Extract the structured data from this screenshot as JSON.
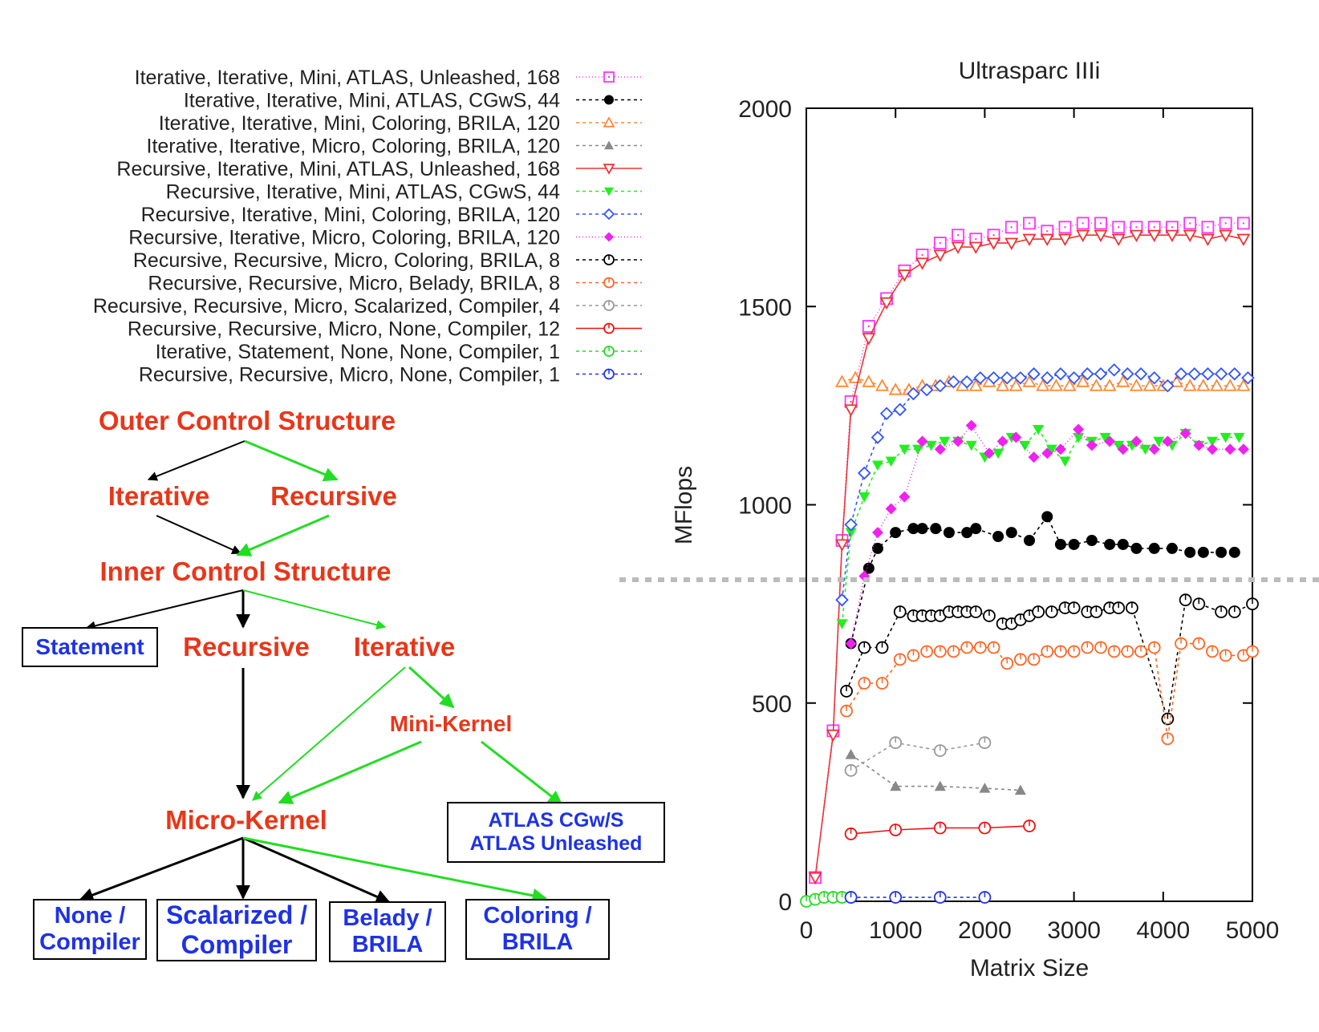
{
  "chart_data": {
    "type": "line",
    "title": "Ultrasparc IIIi",
    "xlabel": "Matrix Size",
    "ylabel": "MFlops",
    "xlim": [
      0,
      5000
    ],
    "ylim": [
      0,
      2000
    ],
    "xticks": [
      0,
      1000,
      2000,
      3000,
      4000,
      5000
    ],
    "yticks": [
      0,
      500,
      1000,
      1500,
      2000
    ],
    "grid": false,
    "legend_position": "top-left-outside",
    "series": [
      {
        "name": "Iterative, Iterative, Mini, ATLAS, Unleashed, 168",
        "color": "#ff33ff",
        "marker": "square-open",
        "dash": "1,3",
        "x": [
          100,
          300,
          400,
          500,
          700,
          900,
          1100,
          1300,
          1500,
          1700,
          1900,
          2100,
          2300,
          2500,
          2700,
          2900,
          3100,
          3300,
          3500,
          3700,
          3900,
          4100,
          4300,
          4500,
          4700,
          4900
        ],
        "y": [
          60,
          430,
          910,
          1260,
          1450,
          1520,
          1590,
          1630,
          1660,
          1680,
          1670,
          1680,
          1700,
          1710,
          1690,
          1700,
          1710,
          1710,
          1700,
          1700,
          1700,
          1700,
          1710,
          1700,
          1710,
          1710
        ]
      },
      {
        "name": "Iterative, Iterative, Mini, ATLAS, CGwS, 44",
        "color": "#000000",
        "marker": "circle-filled",
        "dash": "4,4",
        "x": [
          500,
          700,
          800,
          1000,
          1200,
          1300,
          1450,
          1600,
          1800,
          1900,
          2150,
          2300,
          2500,
          2700,
          2850,
          3000,
          3200,
          3400,
          3550,
          3700,
          3900,
          4100,
          4300,
          4450,
          4650,
          4800
        ],
        "y": [
          650,
          840,
          890,
          930,
          940,
          940,
          940,
          930,
          930,
          940,
          920,
          930,
          910,
          970,
          900,
          900,
          910,
          900,
          900,
          890,
          890,
          890,
          880,
          880,
          880,
          880
        ]
      },
      {
        "name": "Iterative, Iterative, Mini, Coloring, BRILA, 120",
        "color": "#ff8833",
        "marker": "triangle-open",
        "dash": "4,4",
        "x": [
          400,
          550,
          700,
          850,
          1000,
          1150,
          1300,
          1450,
          1600,
          1750,
          1900,
          2050,
          2200,
          2350,
          2500,
          2650,
          2800,
          2950,
          3100,
          3250,
          3400,
          3550,
          3700,
          3850,
          4000,
          4150,
          4300,
          4450,
          4600,
          4750,
          4900
        ],
        "y": [
          1310,
          1320,
          1310,
          1300,
          1290,
          1290,
          1300,
          1300,
          1310,
          1300,
          1300,
          1310,
          1300,
          1300,
          1310,
          1300,
          1300,
          1300,
          1310,
          1300,
          1300,
          1310,
          1300,
          1300,
          1300,
          1310,
          1300,
          1300,
          1300,
          1300,
          1300
        ]
      },
      {
        "name": "Iterative, Iterative, Micro, Coloring, BRILA, 120",
        "color": "#888888",
        "marker": "triangle-filled",
        "dash": "4,4",
        "x": [
          500,
          1000,
          1500,
          2000,
          2400
        ],
        "y": [
          370,
          290,
          290,
          285,
          280
        ]
      },
      {
        "name": "Recursive, Iterative, Mini, ATLAS, Unleashed, 168",
        "color": "#ee3333",
        "marker": "triangle-down-open",
        "dash": "",
        "x": [
          100,
          300,
          400,
          500,
          700,
          900,
          1100,
          1300,
          1500,
          1700,
          1900,
          2100,
          2300,
          2500,
          2700,
          2900,
          3100,
          3300,
          3500,
          3700,
          3900,
          4100,
          4300,
          4500,
          4700,
          4900
        ],
        "y": [
          60,
          420,
          900,
          1240,
          1420,
          1510,
          1580,
          1610,
          1630,
          1650,
          1650,
          1660,
          1660,
          1670,
          1670,
          1670,
          1680,
          1680,
          1670,
          1680,
          1680,
          1680,
          1680,
          1670,
          1680,
          1670
        ]
      },
      {
        "name": "Recursive, Iterative, Mini, ATLAS, CGwS, 44",
        "color": "#22ee22",
        "marker": "triangle-down-filled",
        "dash": "4,4",
        "x": [
          400,
          500,
          650,
          800,
          950,
          1100,
          1250,
          1400,
          1550,
          1700,
          1850,
          2000,
          2150,
          2300,
          2450,
          2600,
          2750,
          2900,
          3050,
          3200,
          3350,
          3500,
          3650,
          3800,
          3950,
          4100,
          4250,
          4400,
          4550,
          4700,
          4850
        ],
        "y": [
          700,
          930,
          1020,
          1100,
          1110,
          1140,
          1140,
          1150,
          1160,
          1160,
          1150,
          1120,
          1130,
          1170,
          1150,
          1190,
          1140,
          1110,
          1170,
          1160,
          1170,
          1150,
          1150,
          1140,
          1160,
          1150,
          1180,
          1150,
          1160,
          1170,
          1170
        ]
      },
      {
        "name": "Recursive, Iterative, Mini, Coloring, BRILA, 120",
        "color": "#3355ff",
        "marker": "diamond-open",
        "dash": "4,4",
        "x": [
          400,
          500,
          650,
          800,
          900,
          1050,
          1200,
          1350,
          1500,
          1650,
          1800,
          1950,
          2100,
          2250,
          2400,
          2550,
          2700,
          2850,
          3000,
          3150,
          3300,
          3450,
          3600,
          3750,
          3900,
          4050,
          4200,
          4350,
          4500,
          4650,
          4800,
          4950
        ],
        "y": [
          760,
          950,
          1080,
          1170,
          1230,
          1240,
          1280,
          1290,
          1300,
          1310,
          1310,
          1320,
          1320,
          1320,
          1320,
          1330,
          1320,
          1330,
          1320,
          1330,
          1330,
          1340,
          1330,
          1330,
          1320,
          1300,
          1330,
          1330,
          1330,
          1330,
          1330,
          1320
        ]
      },
      {
        "name": "Recursive, Iterative, Micro, Coloring, BRILA, 120",
        "color": "#ee22ee",
        "marker": "diamond-filled",
        "dash": "1,3",
        "x": [
          500,
          650,
          800,
          950,
          1100,
          1300,
          1500,
          1700,
          1850,
          2050,
          2200,
          2350,
          2550,
          2700,
          2850,
          3050,
          3200,
          3400,
          3550,
          3700,
          3900,
          4050,
          4250,
          4400,
          4550,
          4750,
          4900
        ],
        "y": [
          650,
          820,
          930,
          990,
          1020,
          1160,
          1140,
          1160,
          1200,
          1130,
          1160,
          1170,
          1120,
          1130,
          1140,
          1190,
          1150,
          1160,
          1140,
          1160,
          1140,
          1160,
          1180,
          1150,
          1140,
          1140,
          1140
        ]
      },
      {
        "name": "Recursive, Recursive, Micro, Coloring, BRILA, 8",
        "color": "#000000",
        "marker": "circle-open",
        "dash": "4,4",
        "x": [
          450,
          650,
          850,
          1050,
          1200,
          1300,
          1400,
          1500,
          1600,
          1700,
          1800,
          1900,
          2050,
          2200,
          2300,
          2400,
          2500,
          2600,
          2750,
          2900,
          3000,
          3150,
          3250,
          3400,
          3500,
          3650,
          4050,
          4250,
          4400,
          4650,
          4800,
          5000
        ],
        "y": [
          530,
          640,
          640,
          730,
          720,
          720,
          720,
          720,
          730,
          730,
          730,
          730,
          720,
          700,
          700,
          710,
          720,
          730,
          730,
          740,
          740,
          730,
          730,
          740,
          740,
          740,
          460,
          760,
          750,
          730,
          730,
          750
        ]
      },
      {
        "name": "Recursive, Recursive, Micro, Belady, BRILA, 8",
        "color": "#ff6622",
        "marker": "circle-open",
        "dash": "4,4",
        "x": [
          450,
          650,
          850,
          1050,
          1200,
          1350,
          1500,
          1650,
          1800,
          1950,
          2100,
          2250,
          2400,
          2550,
          2700,
          2850,
          3000,
          3150,
          3300,
          3450,
          3600,
          3750,
          3900,
          4050,
          4200,
          4400,
          4550,
          4700,
          4900,
          5000
        ],
        "y": [
          480,
          550,
          550,
          610,
          620,
          630,
          630,
          630,
          640,
          640,
          640,
          600,
          610,
          610,
          630,
          630,
          630,
          640,
          640,
          630,
          630,
          630,
          640,
          410,
          650,
          650,
          630,
          620,
          620,
          630
        ]
      },
      {
        "name": "Recursive, Recursive, Micro, Scalarized, Compiler, 4",
        "color": "#999999",
        "marker": "circle-open",
        "dash": "4,4",
        "x": [
          500,
          1000,
          1500,
          2000
        ],
        "y": [
          330,
          400,
          380,
          400
        ]
      },
      {
        "name": "Recursive, Recursive, Micro, None, Compiler, 12",
        "color": "#ee1111",
        "marker": "circle-open",
        "dash": "",
        "x": [
          500,
          1000,
          1500,
          2000,
          2500
        ],
        "y": [
          170,
          180,
          185,
          185,
          190
        ]
      },
      {
        "name": "Iterative, Statement, None, None, Compiler, 1",
        "color": "#22dd22",
        "marker": "circle-open",
        "dash": "4,4",
        "x": [
          0,
          100,
          200,
          300,
          400,
          500
        ],
        "y": [
          0,
          5,
          10,
          10,
          10,
          10
        ]
      },
      {
        "name": "Recursive, Recursive, Micro, None, Compiler, 1",
        "color": "#2233ee",
        "marker": "circle-open",
        "dash": "4,4",
        "x": [
          500,
          1000,
          1500,
          2000
        ],
        "y": [
          10,
          10,
          10,
          10
        ]
      }
    ]
  },
  "diagram": {
    "outer_title": "Outer Control Structure",
    "outer_iterative": "Iterative",
    "outer_recursive": "Recursive",
    "inner_title": "Inner Control Structure",
    "statement": "Statement",
    "inner_recursive": "Recursive",
    "inner_iterative": "Iterative",
    "mini_kernel": "Mini-Kernel",
    "micro_kernel": "Micro-Kernel",
    "atlas_line1": "ATLAS CGw/S",
    "atlas_line2": "ATLAS Unleashed",
    "none_line1": "None /",
    "none_line2": "Compiler",
    "scalarized_line1": "Scalarized /",
    "scalarized_line2": "Compiler",
    "belady_line1": "Belady /",
    "belady_line2": "BRILA",
    "coloring_line1": "Coloring /",
    "coloring_line2": "BRILA",
    "text_color": "#e8361a",
    "box_text_color": "#1e32e6"
  }
}
